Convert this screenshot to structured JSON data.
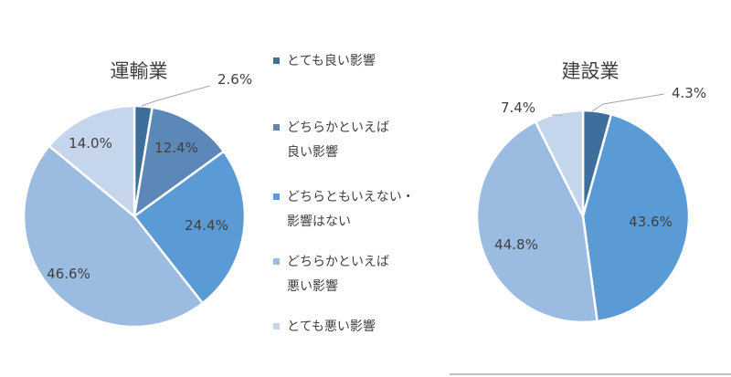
{
  "colors": {
    "very_good": "#3e6f9c",
    "somewhat_good": "#5b88b9",
    "neutral": "#5b9bd5",
    "somewhat_bad": "#9bbbe0",
    "very_bad": "#c5d6ec",
    "leader": "#a6a6a6",
    "text": "#404040"
  },
  "chart_data": [
    {
      "type": "pie",
      "title": "運輸業",
      "slices": [
        {
          "key": "very_good",
          "value": 2.6,
          "label": "2.6%"
        },
        {
          "key": "somewhat_good",
          "value": 12.4,
          "label": "12.4%"
        },
        {
          "key": "neutral",
          "value": 24.4,
          "label": "24.4%"
        },
        {
          "key": "somewhat_bad",
          "value": 46.6,
          "label": "46.6%"
        },
        {
          "key": "very_bad",
          "value": 14.0,
          "label": "14.0%"
        }
      ]
    },
    {
      "type": "pie",
      "title": "建設業",
      "slices": [
        {
          "key": "very_good",
          "value": 4.3,
          "label": "4.3%"
        },
        {
          "key": "somewhat_good",
          "value": 0.0,
          "label": ""
        },
        {
          "key": "neutral",
          "value": 43.6,
          "label": "43.6%"
        },
        {
          "key": "somewhat_bad",
          "value": 44.8,
          "label": "44.8%"
        },
        {
          "key": "very_bad",
          "value": 7.4,
          "label": "7.4%"
        }
      ]
    }
  ],
  "legend": [
    {
      "key": "very_good",
      "lines": [
        "とても良い影響"
      ]
    },
    {
      "key": "somewhat_good",
      "lines": [
        "どちらかといえば",
        "良い影響"
      ]
    },
    {
      "key": "neutral",
      "lines": [
        "どちらともいえない・",
        "影響はない"
      ]
    },
    {
      "key": "somewhat_bad",
      "lines": [
        "どちらかといえば",
        "悪い影響"
      ]
    },
    {
      "key": "very_bad",
      "lines": [
        "とても悪い影響"
      ]
    }
  ]
}
